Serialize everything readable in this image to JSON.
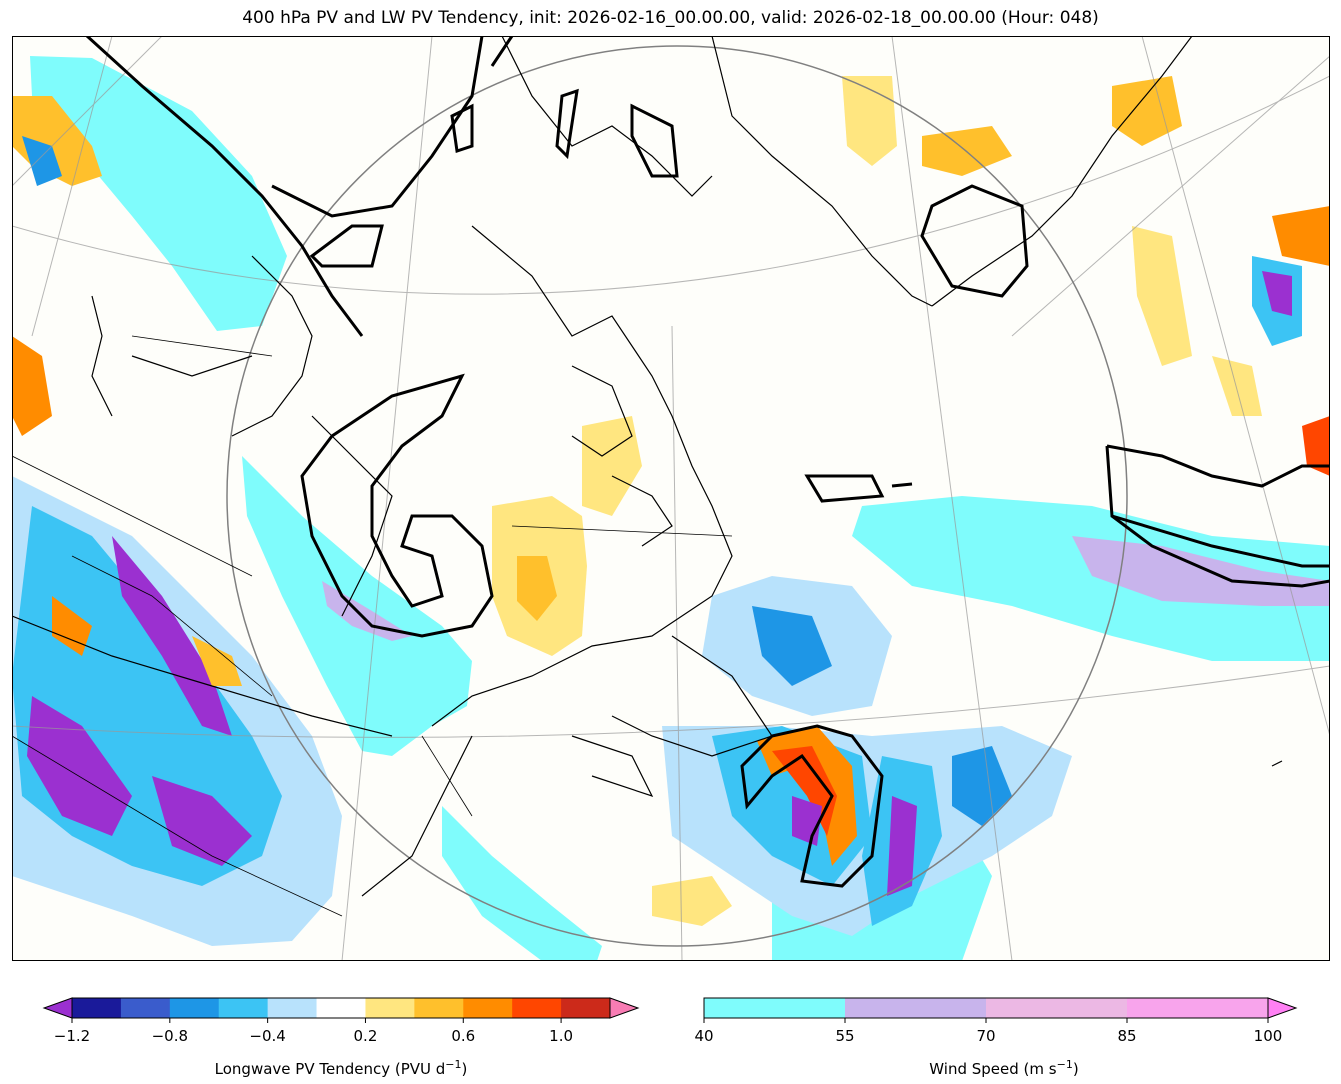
{
  "title": "400 hPa PV and LW PV Tendency, init: 2026-02-16_00.00.00, valid: 2026-02-18_00.00.00 (Hour: 048)",
  "map": {
    "region": "Eastern Canada and North Atlantic",
    "field_contoured": "400 hPa PV",
    "field_shaded_1": "Longwave PV Tendency",
    "field_shaded_2": "Wind Speed"
  },
  "colorbars": {
    "pv_tendency": {
      "label_text": "Longwave PV Tendency (PVU d",
      "label_exp": "−1",
      "label_close": ")",
      "ticks": [
        "−1.2",
        "−0.8",
        "−0.4",
        "0.2",
        "0.6",
        "1.0"
      ],
      "colors": [
        "#1a1a9a",
        "#3a5ccc",
        "#1e96e6",
        "#3cc4f4",
        "#b8e2fc",
        "#ffffff",
        "#ffe680",
        "#ffc02c",
        "#ff8c00",
        "#ff4600",
        "#cc2a1a"
      ],
      "under_color": "#9b30d0",
      "over_color": "#f87cb4"
    },
    "wind_speed": {
      "label_text": "Wind Speed (m s",
      "label_exp": "−1",
      "label_close": ")",
      "ticks": [
        "40",
        "55",
        "70",
        "85",
        "100"
      ],
      "colors": [
        "#7ffcfc",
        "#c8b4ec",
        "#ecb8e4",
        "#f8a4ec"
      ],
      "over_color": "#ff80f4"
    }
  }
}
